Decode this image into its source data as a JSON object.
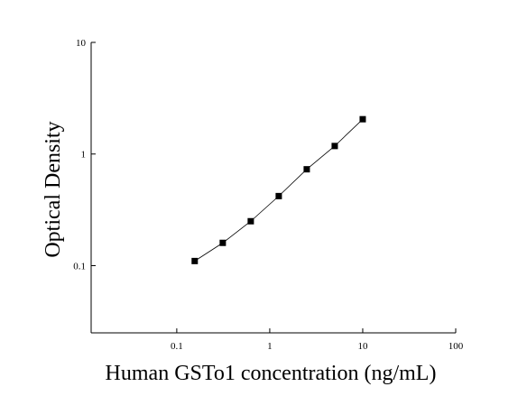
{
  "chart_data": {
    "type": "scatter",
    "x_label": "Human GSTo1 concentration (ng/mL)",
    "y_label": "Optical Density",
    "x": [
      0.156,
      0.3125,
      0.625,
      1.25,
      2.5,
      5,
      10
    ],
    "values": [
      0.11,
      0.16,
      0.25,
      0.42,
      0.73,
      1.18,
      2.05
    ],
    "color": "#000000",
    "connect": true,
    "log_x": true,
    "log_y": true,
    "xlim": [
      0.012,
      100
    ],
    "ylim": [
      0.025,
      10
    ],
    "xticks": [
      0.1,
      1,
      10,
      100
    ],
    "yticks": [
      0.1,
      1,
      10
    ]
  }
}
